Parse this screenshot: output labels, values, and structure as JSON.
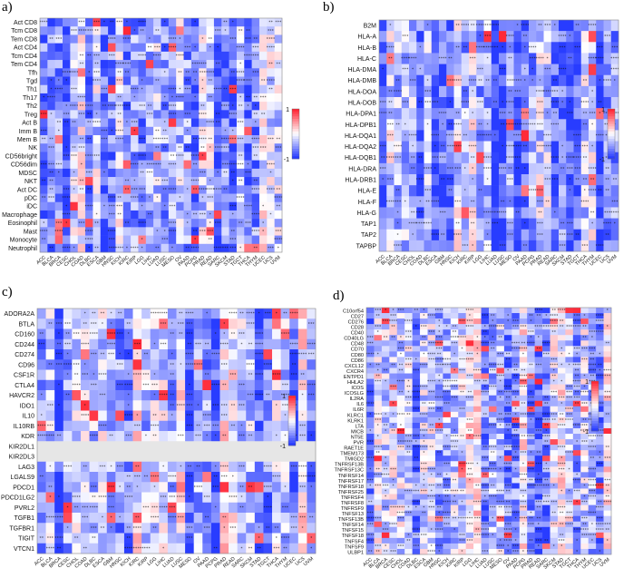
{
  "chart_data": [
    {
      "type": "heatmap",
      "panel_label": "a)",
      "columns": [
        "ACC",
        "BLCA",
        "BRCA",
        "CESC",
        "CHOL",
        "COAD",
        "DLBC",
        "ESCA",
        "GBM",
        "HNSC",
        "KICH",
        "KIRC",
        "KIRP",
        "LGG",
        "LIHC",
        "LUAD",
        "LUSC",
        "MESO",
        "OV",
        "PAAD",
        "PCPG",
        "PRAD",
        "READ",
        "SARC",
        "SKCM",
        "STAD",
        "TGCT",
        "THCA",
        "THYM",
        "UCEC",
        "UCS",
        "UVM"
      ],
      "rows": [
        "Act CD8",
        "Tcm CD8",
        "Tem CD8",
        "Act CD4",
        "Tcm CD4",
        "Tem CD4",
        "Tfh",
        "Tgd",
        "Th1",
        "Th17",
        "Th2",
        "Treg",
        "Act B",
        "Imm B",
        "Mem B",
        "NK",
        "CD56bright",
        "CD56dim",
        "MDSC",
        "NKT",
        "Act DC",
        "pDC",
        "iDC",
        "Macrophage",
        "Eosinophil",
        "Mast",
        "Monocyte",
        "Neutrophil"
      ],
      "color_range": [
        -1,
        1
      ],
      "colorbar_ticks": [
        "1",
        "-1"
      ]
    },
    {
      "type": "heatmap",
      "panel_label": "b)",
      "columns": [
        "ACC",
        "BLCA",
        "BRCA",
        "CESC",
        "CHOL",
        "COAD",
        "DLBC",
        "ESCA",
        "GBM",
        "HNSC",
        "KICH",
        "KIRC",
        "KIRP",
        "LGG",
        "LIHC",
        "LUAD",
        "LUSC",
        "MESO",
        "OV",
        "PAAD",
        "PCPG",
        "PRAD",
        "READ",
        "SARC",
        "SKCM",
        "STAD",
        "TGCT",
        "THCA",
        "THYM",
        "UCEC",
        "UCS",
        "UVM"
      ],
      "rows": [
        "B2M",
        "HLA-A",
        "HLA-B",
        "HLA-C",
        "HLA-DMA",
        "HLA-DMB",
        "HLA-DOA",
        "HLA-DOB",
        "HLA-DPA1",
        "HLA-DPB1",
        "HLA-DQA1",
        "HLA-DQA2",
        "HLA-DQB1",
        "HLA-DRA",
        "HLA-DRB1",
        "HLA-E",
        "HLA-F",
        "HLA-G",
        "TAP1",
        "TAP2",
        "TAPBP"
      ],
      "color_range": [
        -1,
        1
      ],
      "colorbar_ticks": [
        "1",
        "-1"
      ]
    },
    {
      "type": "heatmap",
      "panel_label": "c)",
      "columns": [
        "ACC",
        "BLCA",
        "BRCA",
        "CESC",
        "CHOL",
        "COAD",
        "DLBC",
        "ESCA",
        "GBM",
        "HNSC",
        "KICH",
        "KIRC",
        "KIRP",
        "LGG",
        "LIHC",
        "LUAD",
        "LUSC",
        "MESO",
        "OV",
        "PAAD",
        "PCPG",
        "PRAD",
        "READ",
        "SARC",
        "SKCM",
        "STAD",
        "TGCT",
        "THCA",
        "THYM",
        "UCEC",
        "UCS",
        "UVM"
      ],
      "rows": [
        "ADORA2A",
        "BTLA",
        "CD160",
        "CD244",
        "CD274",
        "CD96",
        "CSF1R",
        "CTLA4",
        "HAVCR2",
        "IDO1",
        "IL10",
        "IL10RB",
        "KDR",
        "KIR2DL1",
        "KIR2DL3",
        "LAG3",
        "LGALS9",
        "PDCD1",
        "PDCD1LG2",
        "PVRL2",
        "TGFB1",
        "TGFBR1",
        "TIGIT",
        "VTCN1"
      ],
      "color_range": [
        -1,
        1
      ],
      "colorbar_ticks": [
        "1",
        "-1"
      ]
    },
    {
      "type": "heatmap",
      "panel_label": "d)",
      "columns": [
        "ACC",
        "BLCA",
        "BRCA",
        "CESC",
        "CHOL",
        "COAD",
        "DLBC",
        "ESCA",
        "GBM",
        "HNSC",
        "KICH",
        "KIRC",
        "KIRP",
        "LGG",
        "LIHC",
        "LUAD",
        "LUSC",
        "MESO",
        "OV",
        "PAAD",
        "PCPG",
        "PRAD",
        "READ",
        "SARC",
        "SKCM",
        "STAD",
        "TGCT",
        "THCA",
        "THYM",
        "UCEC",
        "UCS",
        "UVM"
      ],
      "rows": [
        "C10orf54",
        "CD27",
        "CD276",
        "CD28",
        "CD40",
        "CD40LG",
        "CD48",
        "CD70",
        "CD80",
        "CD86",
        "CXCL12",
        "CXCR4",
        "ENTPD1",
        "HHLA2",
        "ICOS",
        "ICOSLG",
        "IL2RA",
        "IL6",
        "IL6R",
        "KLRC1",
        "KLRK1",
        "LTA",
        "MICB",
        "NT5E",
        "PVR",
        "RAET1E",
        "TMEM173",
        "TMIGD2",
        "TNFRSF13B",
        "TNFRSF13C",
        "TNFRSF14",
        "TNFRSF17",
        "TNFRSF18",
        "TNFRSF25",
        "TNFRSF4",
        "TNFRSF8",
        "TNFRSF9",
        "TNFSF13",
        "TNFSF13B",
        "TNFSF14",
        "TNFSF15",
        "TNFSF18",
        "TNFSF4",
        "TNFSF9",
        "ULBP1"
      ],
      "color_range": [
        -1,
        1
      ],
      "colorbar_ticks": [
        "1",
        "-1"
      ]
    }
  ],
  "colors": {
    "positive": "#e8293a",
    "negative": "#2438e0",
    "neutral": "#ffffff",
    "na_cell": "#e6e6e6"
  }
}
